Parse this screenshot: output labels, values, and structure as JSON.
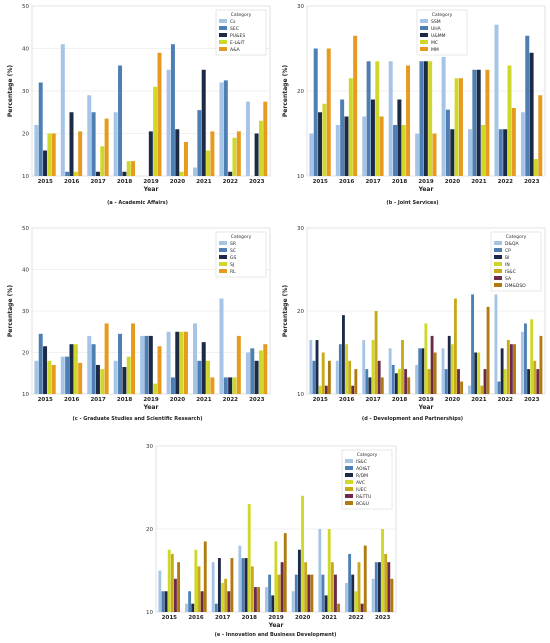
{
  "chart_data": [
    {
      "id": "a",
      "type": "bar",
      "title": "",
      "caption": "(a - Academic Affairs)",
      "xlabel": "Year",
      "ylabel": "Percentage (%)",
      "ylim": [
        10,
        50
      ],
      "yticks": [
        10,
        20,
        30,
        40,
        50
      ],
      "grid": true,
      "legend_title": "Category",
      "legend_position": "top-right",
      "categories": [
        "2015",
        "2016",
        "2017",
        "2018",
        "2019",
        "2020",
        "2021",
        "2022",
        "2023"
      ],
      "series": [
        {
          "name": "Cs",
          "color": "#a6c4e6",
          "values": [
            22,
            41,
            29,
            25,
            10,
            35,
            12,
            32,
            27.5
          ]
        },
        {
          "name": "SEC",
          "color": "#4e7fb4",
          "values": [
            32,
            11,
            25,
            36,
            10,
            41,
            25.5,
            32.5,
            10
          ]
        },
        {
          "name": "PU&ES",
          "color": "#1c2a45",
          "values": [
            16,
            25,
            11,
            11,
            20.5,
            21,
            35,
            11,
            20
          ]
        },
        {
          "name": "E-L&IT",
          "color": "#cfd82a",
          "values": [
            20,
            11,
            17,
            13.5,
            31,
            11,
            16,
            19,
            23
          ]
        },
        {
          "name": "A&A",
          "color": "#e69a1f",
          "values": [
            20,
            20.5,
            23.5,
            13.5,
            39,
            18,
            20.5,
            20.5,
            27.5
          ]
        }
      ]
    },
    {
      "id": "b",
      "type": "bar",
      "title": "",
      "caption": "(b - Joint Services)",
      "xlabel": "Year",
      "ylabel": "Percentage (%)",
      "ylim": [
        10,
        30
      ],
      "yticks": [
        10,
        20,
        30
      ],
      "grid": true,
      "legend_title": "Category",
      "legend_position": "top-left",
      "categories": [
        "2015",
        "2016",
        "2017",
        "2018",
        "2019",
        "2020",
        "2021",
        "2022",
        "2023"
      ],
      "series": [
        {
          "name": "SSM",
          "color": "#a6c4e6",
          "values": [
            15,
            16,
            17,
            23.5,
            15,
            24,
            15.5,
            27.8,
            17.5
          ]
        },
        {
          "name": "UHA",
          "color": "#4e7fb4",
          "values": [
            25,
            19,
            23.5,
            16,
            23.5,
            17.8,
            22.5,
            15.5,
            26.5
          ]
        },
        {
          "name": "U&MM",
          "color": "#1c2a45",
          "values": [
            17.5,
            17,
            19,
            19,
            23.5,
            15.5,
            22.5,
            15.5,
            24.5
          ]
        },
        {
          "name": "MC",
          "color": "#cfd82a",
          "values": [
            18.5,
            21.5,
            23.5,
            16,
            23.5,
            21.5,
            16,
            23,
            12
          ]
        },
        {
          "name": "MM",
          "color": "#e69a1f",
          "values": [
            25,
            26.5,
            17,
            23,
            15,
            21.5,
            22.5,
            18,
            19.5
          ]
        }
      ]
    },
    {
      "id": "c",
      "type": "bar",
      "title": "",
      "caption": "(c - Graduate Studies and Scientific Research)",
      "xlabel": "Year",
      "ylabel": "Percentage (%)",
      "ylim": [
        10,
        50
      ],
      "yticks": [
        10,
        20,
        30,
        40,
        50
      ],
      "grid": true,
      "legend_title": "Category",
      "legend_position": "top-right",
      "categories": [
        "2015",
        "2016",
        "2017",
        "2018",
        "2019",
        "2020",
        "2021",
        "2022",
        "2023"
      ],
      "series": [
        {
          "name": "SR",
          "color": "#a6c4e6",
          "values": [
            18,
            19,
            24,
            18,
            24,
            25,
            27,
            33,
            20
          ]
        },
        {
          "name": "SC",
          "color": "#4e7fb4",
          "values": [
            24.5,
            19,
            22,
            24.5,
            24,
            14,
            18,
            14,
            21
          ]
        },
        {
          "name": "GS",
          "color": "#1c2a45",
          "values": [
            21.5,
            22,
            17,
            16.5,
            24,
            25,
            22.5,
            14,
            18
          ]
        },
        {
          "name": "SJ",
          "color": "#cfd82a",
          "values": [
            18,
            22,
            16,
            19,
            12.5,
            25,
            18,
            14,
            20.5
          ]
        },
        {
          "name": "RL",
          "color": "#e69a1f",
          "values": [
            17,
            17.5,
            27,
            27,
            21.5,
            25,
            14,
            24,
            22
          ]
        }
      ]
    },
    {
      "id": "d",
      "type": "bar",
      "title": "",
      "caption": "(d - Development and Partnerships)",
      "xlabel": "Year",
      "ylabel": "Percentage (%)",
      "ylim": [
        10,
        30
      ],
      "yticks": [
        10,
        20,
        30
      ],
      "grid": true,
      "legend_title": "Category",
      "legend_position": "top-right",
      "categories": [
        "2015",
        "2016",
        "2017",
        "2018",
        "2019",
        "2020",
        "2021",
        "2022",
        "2023"
      ],
      "series": [
        {
          "name": "D&QA",
          "color": "#a6c4e6",
          "values": [
            16.5,
            14,
            16.5,
            15.5,
            13.5,
            15.5,
            11,
            22,
            17.5
          ]
        },
        {
          "name": "CP",
          "color": "#4e7fb4",
          "values": [
            14,
            16,
            13,
            13.5,
            15.5,
            13,
            22,
            11.5,
            18.5
          ]
        },
        {
          "name": "BI",
          "color": "#1c2a45",
          "values": [
            16.5,
            19.5,
            12,
            12.5,
            15.5,
            17,
            15,
            15.5,
            13
          ]
        },
        {
          "name": "IN",
          "color": "#cfd82a",
          "values": [
            11,
            16,
            16.5,
            13,
            18.5,
            16,
            15,
            13,
            19
          ]
        },
        {
          "name": "IS&C",
          "color": "#c8a917",
          "values": [
            15,
            14,
            20,
            16.5,
            13,
            21.5,
            11,
            16.5,
            14
          ]
        },
        {
          "name": "SA",
          "color": "#6b2b45",
          "values": [
            11,
            11,
            14,
            13,
            17,
            13,
            13,
            16,
            13
          ]
        },
        {
          "name": "DM&DSO",
          "color": "#b07a10",
          "values": [
            14,
            13,
            12,
            12,
            15,
            11.5,
            20.5,
            16,
            17
          ]
        }
      ]
    },
    {
      "id": "e",
      "type": "bar",
      "title": "",
      "caption": "(e - Innovation and Business Development)",
      "xlabel": "Year",
      "ylabel": "Percentage (%)",
      "ylim": [
        10,
        30
      ],
      "yticks": [
        10,
        20,
        30
      ],
      "grid": true,
      "legend_title": "Category",
      "legend_position": "top-right",
      "categories": [
        "2015",
        "2016",
        "2017",
        "2018",
        "2019",
        "2020",
        "2021",
        "2022",
        "2023"
      ],
      "series": [
        {
          "name": "IS&C",
          "color": "#a6c4e6",
          "values": [
            15,
            11,
            16,
            18,
            13,
            12.5,
            20,
            13.5,
            14
          ]
        },
        {
          "name": "AOI&T",
          "color": "#4e7fb4",
          "values": [
            12.5,
            12.5,
            11,
            16.5,
            14.5,
            14.5,
            14.5,
            17,
            16
          ]
        },
        {
          "name": "R/DM",
          "color": "#1c2a45",
          "values": [
            12.5,
            11,
            16.5,
            16.5,
            12,
            17.5,
            12,
            14.5,
            16
          ]
        },
        {
          "name": "AVC",
          "color": "#cfd82a",
          "values": [
            17.5,
            17.5,
            13.5,
            23,
            18.5,
            24,
            20,
            12.5,
            20
          ]
        },
        {
          "name": "IUEC",
          "color": "#c8a917",
          "values": [
            17,
            15.5,
            14,
            15.5,
            14.5,
            16,
            16,
            16,
            17
          ]
        },
        {
          "name": "R&TTU",
          "color": "#6b2b45",
          "values": [
            14,
            12.5,
            12.5,
            13,
            16,
            14.5,
            14.5,
            11,
            16
          ]
        },
        {
          "name": "BC&U",
          "color": "#b07a10",
          "values": [
            16,
            18.5,
            16.5,
            13,
            19.5,
            14.5,
            11,
            18,
            14
          ]
        }
      ]
    }
  ]
}
